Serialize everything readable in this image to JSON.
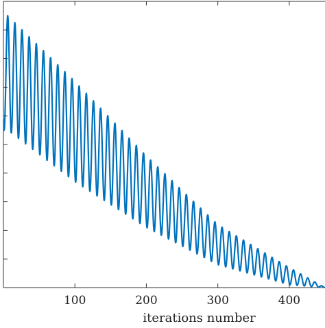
{
  "chart_data": {
    "type": "line",
    "title": "",
    "xlabel": "iterations number",
    "ylabel": "",
    "xlim": [
      0,
      450
    ],
    "ylim": [
      0,
      1
    ],
    "x_ticks": [
      100,
      200,
      300,
      400
    ],
    "x_tick_labels": [
      "100",
      "200",
      "300",
      "400"
    ],
    "y_ticks": [
      0.1,
      0.2,
      0.3,
      0.4,
      0.5,
      0.6,
      0.7,
      0.8,
      0.9
    ],
    "grid": false,
    "line_color": "#0072bd",
    "series": [
      {
        "upper_envelope": {
          "x": [
            6,
            100,
            200,
            300,
            400,
            450
          ],
          "y": [
            0.95,
            0.72,
            0.46,
            0.22,
            0.07,
            0.0
          ]
        },
        "lower_envelope": {
          "x": [
            6,
            100,
            200,
            300,
            400,
            450
          ],
          "y": [
            0.55,
            0.37,
            0.21,
            0.08,
            0.01,
            0.0
          ]
        },
        "oscillation_period": 10
      }
    ]
  }
}
